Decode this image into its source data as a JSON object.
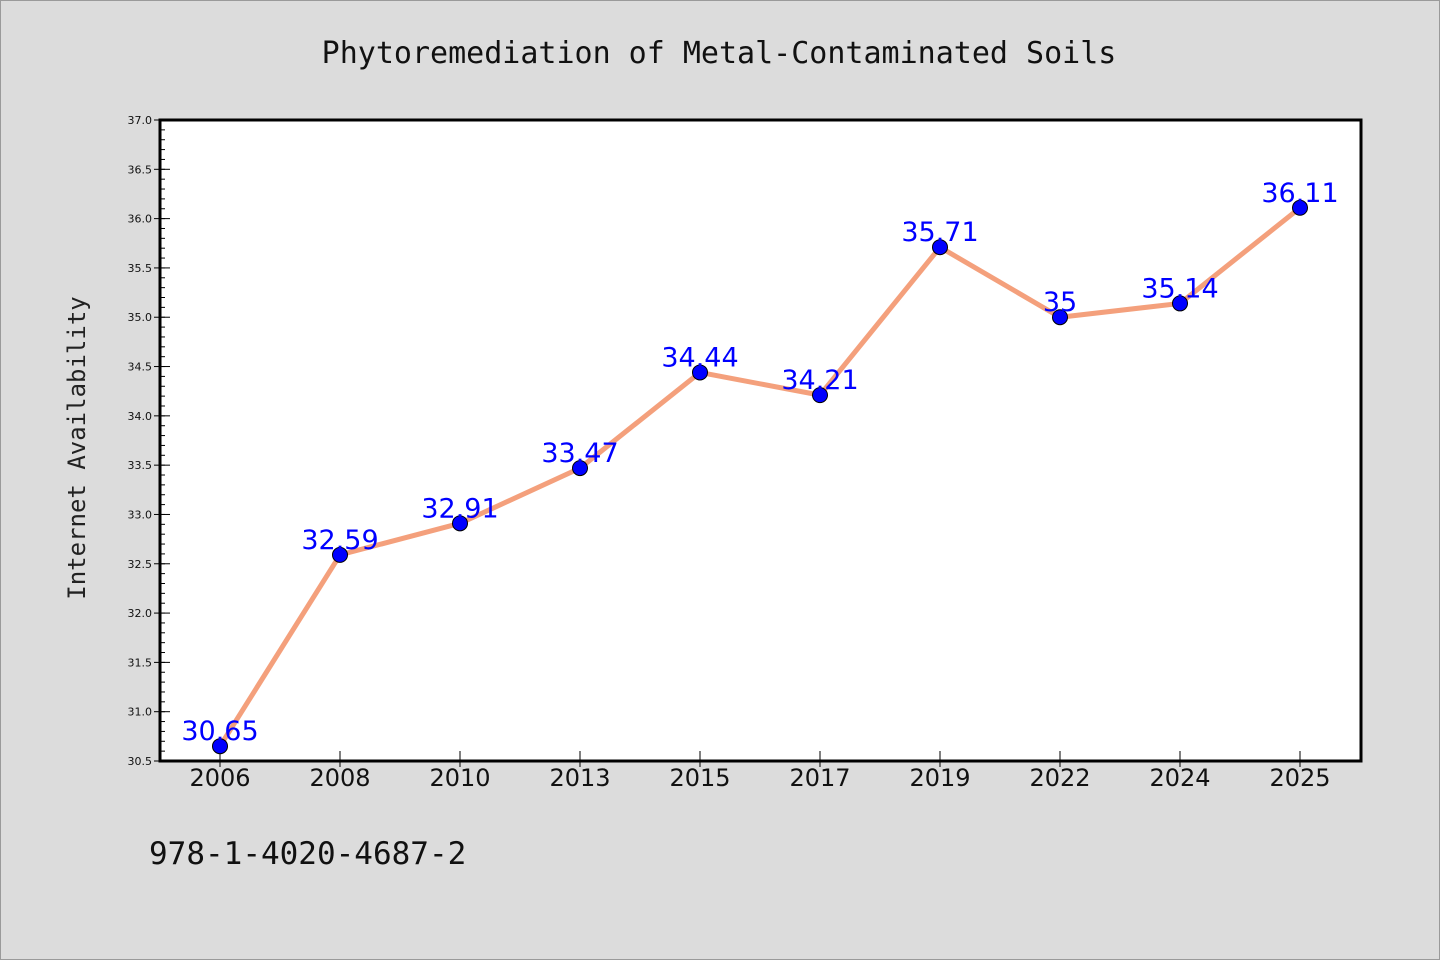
{
  "chart_data": {
    "type": "line",
    "title": "Phytoremediation of Metal-Contaminated Soils",
    "xlabel": "",
    "ylabel": "Internet Availability",
    "categories": [
      "2006",
      "2008",
      "2010",
      "2013",
      "2015",
      "2017",
      "2019",
      "2022",
      "2024",
      "2025"
    ],
    "series": [
      {
        "values": [
          30.65,
          32.59,
          32.91,
          33.47,
          34.44,
          34.21,
          35.71,
          35,
          35.14,
          36.11
        ],
        "labels": [
          "30.65",
          "32.59",
          "32.91",
          "33.47",
          "34.44",
          "34.21",
          "35.71",
          "35",
          "35.14",
          "36.11"
        ],
        "line_color": "#f4a07c",
        "marker_color": "#0000ff"
      }
    ],
    "ylim": [
      30.5,
      37.0
    ],
    "yticks": [
      "30.5",
      "31.0",
      "31.5",
      "32.0",
      "32.5",
      "33.0",
      "33.5",
      "34.0",
      "34.5",
      "35.0",
      "35.5",
      "36.0",
      "36.5",
      "37.0"
    ],
    "grid": false,
    "legend": "none"
  },
  "annotation": "978-1-4020-4687-2",
  "colors": {
    "background": "#dcdcdc",
    "plot_background": "#ffffff",
    "label_color": "#0000ff"
  }
}
